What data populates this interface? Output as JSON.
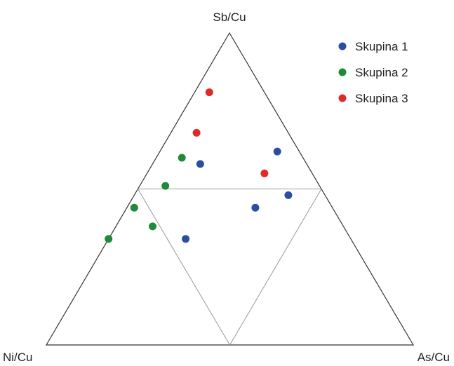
{
  "chart_data": {
    "type": "scatter",
    "subtype": "ternary",
    "vertices": {
      "top": "Sb/Cu",
      "left": "Ni/Cu",
      "right": "As/Cu"
    },
    "grid": "midpoint subdivision lines",
    "legend_position": "top-right",
    "series": [
      {
        "name": "Skupina 1",
        "color": "#2b4ea3",
        "points": [
          {
            "sb": 0.62,
            "ni": 0.06,
            "as": 0.32
          },
          {
            "sb": 0.58,
            "ni": 0.29,
            "as": 0.13
          },
          {
            "sb": 0.48,
            "ni": 0.1,
            "as": 0.42
          },
          {
            "sb": 0.44,
            "ni": 0.21,
            "as": 0.35
          },
          {
            "sb": 0.34,
            "ni": 0.45,
            "as": 0.21
          }
        ]
      },
      {
        "name": "Skupina 2",
        "color": "#1f8a3a",
        "points": [
          {
            "sb": 0.6,
            "ni": 0.33,
            "as": 0.07
          },
          {
            "sb": 0.51,
            "ni": 0.42,
            "as": 0.07
          },
          {
            "sb": 0.44,
            "ni": 0.54,
            "as": 0.02
          },
          {
            "sb": 0.38,
            "ni": 0.52,
            "as": 0.1
          },
          {
            "sb": 0.34,
            "ni": 0.66,
            "as": 0.0
          }
        ]
      },
      {
        "name": "Skupina 3",
        "color": "#e02a2a",
        "points": [
          {
            "sb": 0.81,
            "ni": 0.15,
            "as": 0.04
          },
          {
            "sb": 0.68,
            "ni": 0.25,
            "as": 0.07
          },
          {
            "sb": 0.55,
            "ni": 0.13,
            "as": 0.32
          }
        ]
      }
    ]
  }
}
